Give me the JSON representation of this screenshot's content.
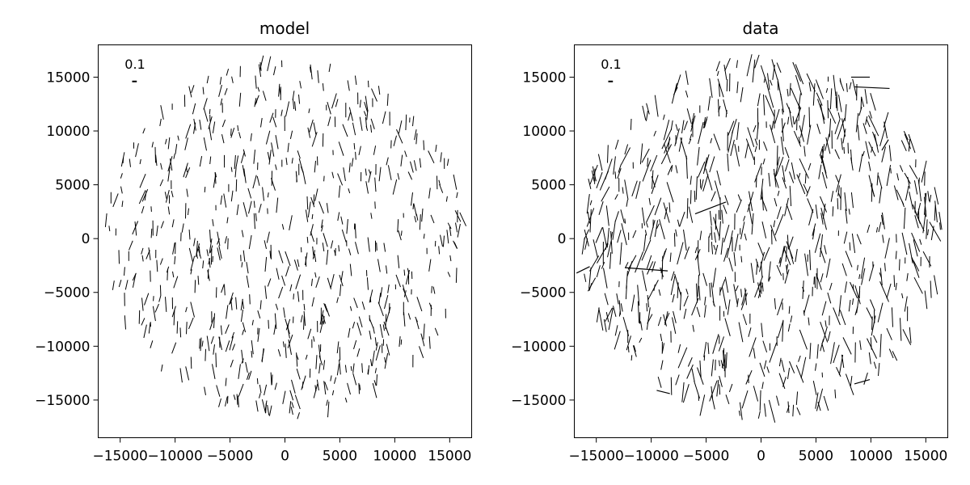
{
  "chart_data": [
    {
      "type": "quiver",
      "title": "model",
      "xlabel": "",
      "ylabel": "",
      "xlim": [
        -17000,
        17000
      ],
      "ylim": [
        -18500,
        18000
      ],
      "xticks": [
        -15000,
        -10000,
        -5000,
        0,
        5000,
        10000,
        15000
      ],
      "yticks": [
        -15000,
        -10000,
        -5000,
        0,
        5000,
        10000,
        15000
      ],
      "xtick_labels": [
        "−15000",
        "−10000",
        "−5000",
        "0",
        "5000",
        "10000",
        "15000"
      ],
      "ytick_labels": [
        "−15000",
        "−10000",
        "−5000",
        "0",
        "5000",
        "10000",
        "15000"
      ],
      "scale_key": {
        "label": "0.1",
        "x": -13700,
        "y": 14600,
        "length": 0.1
      },
      "field": {
        "radius": 16500,
        "count": 700,
        "base": 0.11,
        "var": 0.06,
        "angle_spread": 0.35,
        "seed": 7
      },
      "outliers": []
    },
    {
      "type": "quiver",
      "title": "data",
      "xlabel": "",
      "ylabel": "",
      "xlim": [
        -17000,
        17000
      ],
      "ylim": [
        -18500,
        18000
      ],
      "xticks": [
        -15000,
        -10000,
        -5000,
        0,
        5000,
        10000,
        15000
      ],
      "yticks": [
        -15000,
        -10000,
        -5000,
        0,
        5000,
        10000,
        15000
      ],
      "xtick_labels": [
        "−15000",
        "−10000",
        "−5000",
        "0",
        "5000",
        "10000",
        "15000"
      ],
      "ytick_labels": [
        "−15000",
        "−10000",
        "−5000",
        "0",
        "5000",
        "10000",
        "15000"
      ],
      "scale_key": {
        "label": "0.1",
        "x": -13700,
        "y": 14600,
        "length": 0.1
      },
      "field": {
        "radius": 16500,
        "count": 820,
        "base": 0.15,
        "var": 0.1,
        "angle_spread": 0.4,
        "seed": 11
      },
      "outliers": [
        {
          "x": 8200,
          "y": 15000,
          "dx": 1700,
          "dy": 0
        },
        {
          "x": 8500,
          "y": 14100,
          "dx": 3200,
          "dy": -150
        },
        {
          "x": -6000,
          "y": 2300,
          "dx": 2800,
          "dy": 1100
        },
        {
          "x": -8500,
          "y": -3000,
          "dx": -3900,
          "dy": 300
        },
        {
          "x": -15600,
          "y": -2600,
          "dx": -1200,
          "dy": -600
        },
        {
          "x": -9500,
          "y": -14100,
          "dx": 1200,
          "dy": -300
        },
        {
          "x": 8500,
          "y": -13500,
          "dx": 1400,
          "dy": 400
        },
        {
          "x": 11000,
          "y": 8200,
          "dx": 600,
          "dy": 1000
        }
      ]
    }
  ]
}
